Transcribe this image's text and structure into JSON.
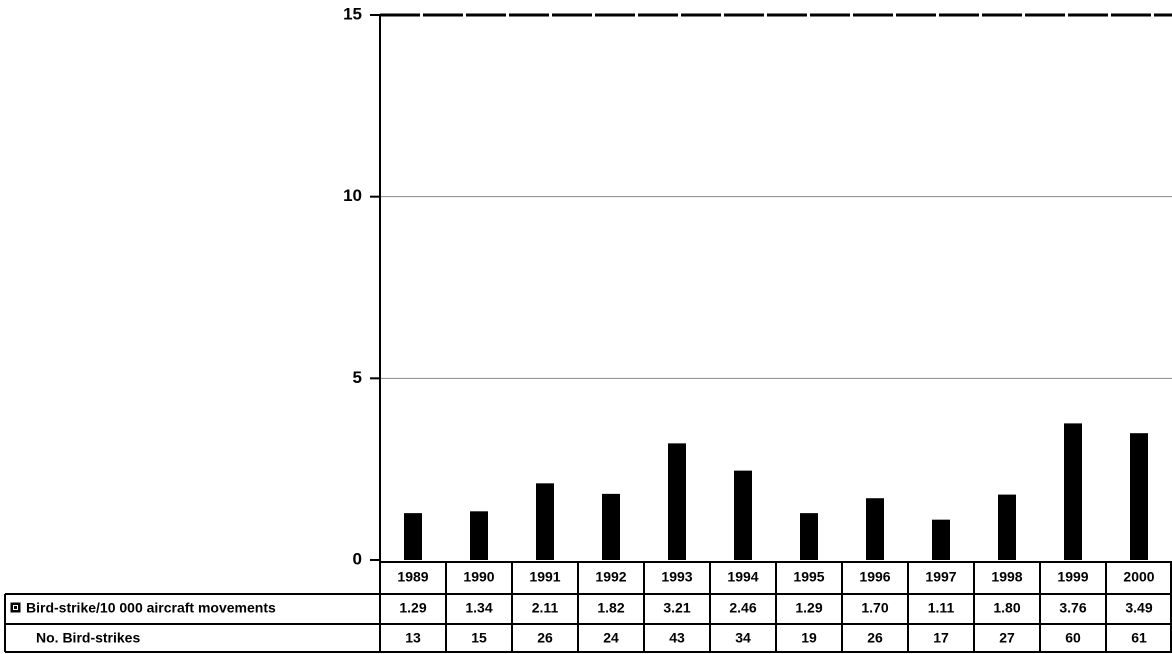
{
  "chart_data": {
    "type": "bar",
    "categories": [
      "1989",
      "1990",
      "1991",
      "1992",
      "1993",
      "1994",
      "1995",
      "1996",
      "1997",
      "1998",
      "1999",
      "2000"
    ],
    "series": [
      {
        "name": "Bird-strike/10 000 aircraft movements",
        "color": "#000000",
        "values": [
          1.29,
          1.34,
          2.11,
          1.82,
          3.21,
          2.46,
          1.29,
          1.7,
          1.11,
          1.8,
          3.76,
          3.49
        ],
        "value_labels": [
          "1.29",
          "1.34",
          "2.11",
          "1.82",
          "3.21",
          "2.46",
          "1.29",
          "1.70",
          "1.11",
          "1.80",
          "3.76",
          "3.49"
        ]
      }
    ],
    "table_row": {
      "name": "No. Bird-strikes",
      "values": [
        13,
        15,
        26,
        24,
        43,
        34,
        19,
        26,
        17,
        27,
        60,
        61
      ]
    },
    "ylim": [
      0,
      15
    ],
    "yticks": [
      0,
      5,
      10,
      15
    ],
    "grid": true
  }
}
